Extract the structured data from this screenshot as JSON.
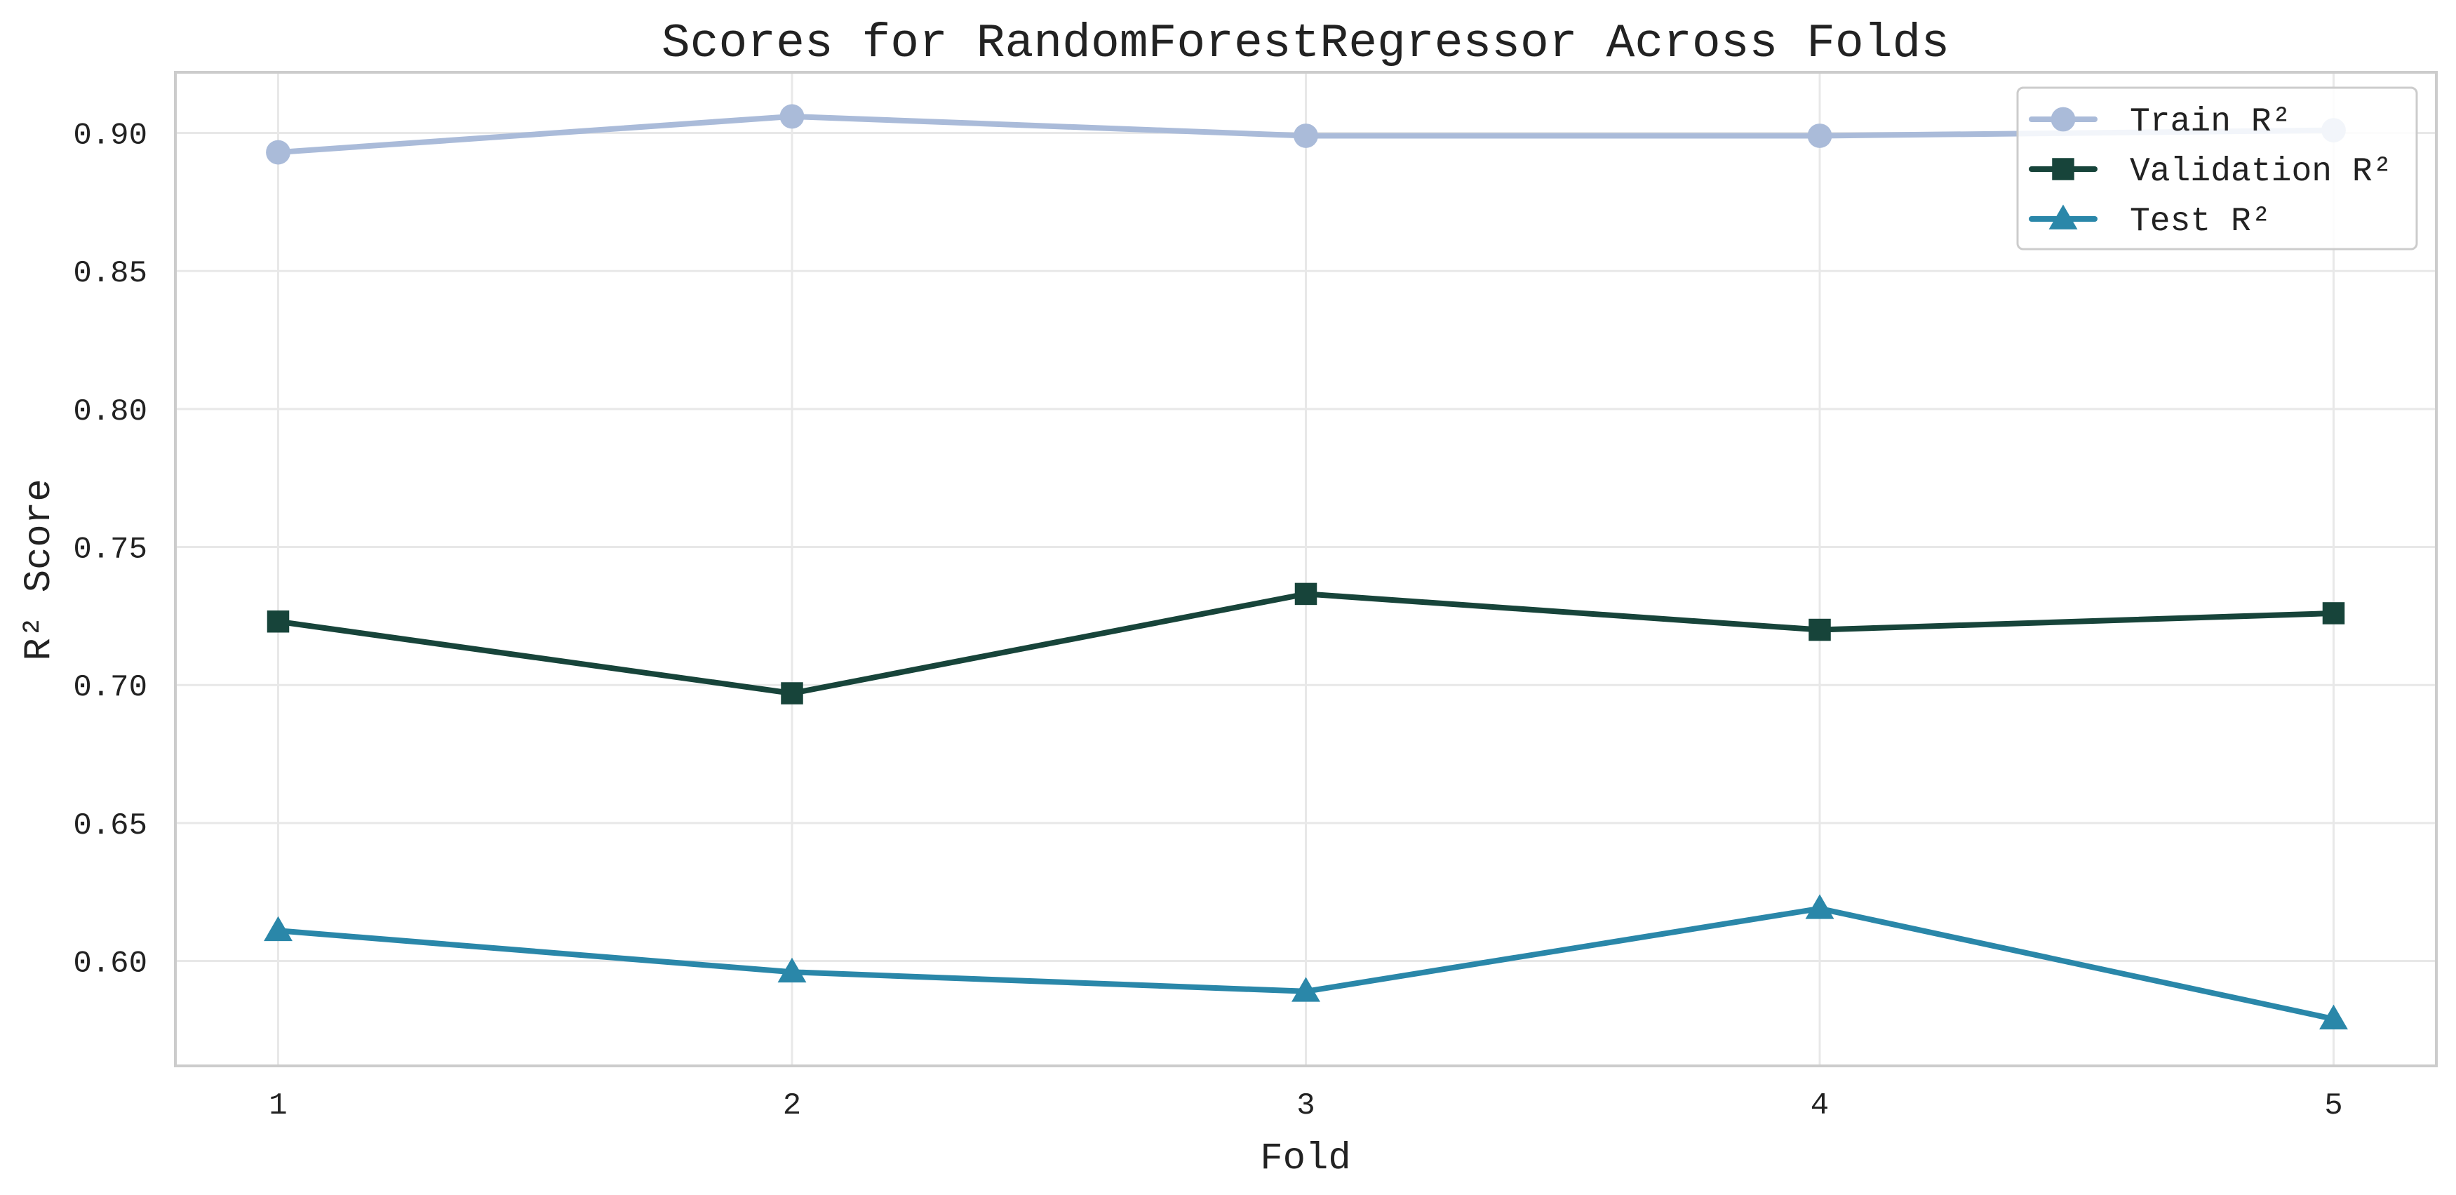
{
  "chart_data": {
    "type": "line",
    "title": "Scores for RandomForestRegressor Across Folds",
    "xlabel": "Fold",
    "ylabel": "R² Score",
    "x": [
      1,
      2,
      3,
      4,
      5
    ],
    "xticks": [
      "1",
      "2",
      "3",
      "4",
      "5"
    ],
    "xlim": [
      0.8,
      5.2
    ],
    "yticks": [
      "0.60",
      "0.65",
      "0.70",
      "0.75",
      "0.80",
      "0.85",
      "0.90"
    ],
    "ylim": [
      0.562,
      0.922
    ],
    "grid": true,
    "legend_position": "top-right",
    "series": [
      {
        "name": "Train R²",
        "color": "#aabbd9",
        "marker": "circle",
        "values": [
          0.893,
          0.906,
          0.899,
          0.899,
          0.901
        ]
      },
      {
        "name": "Validation R²",
        "color": "#17443a",
        "marker": "square",
        "values": [
          0.723,
          0.697,
          0.733,
          0.72,
          0.726
        ]
      },
      {
        "name": "Test R²",
        "color": "#2a87a9",
        "marker": "triangle",
        "values": [
          0.611,
          0.596,
          0.589,
          0.619,
          0.579
        ]
      }
    ]
  }
}
